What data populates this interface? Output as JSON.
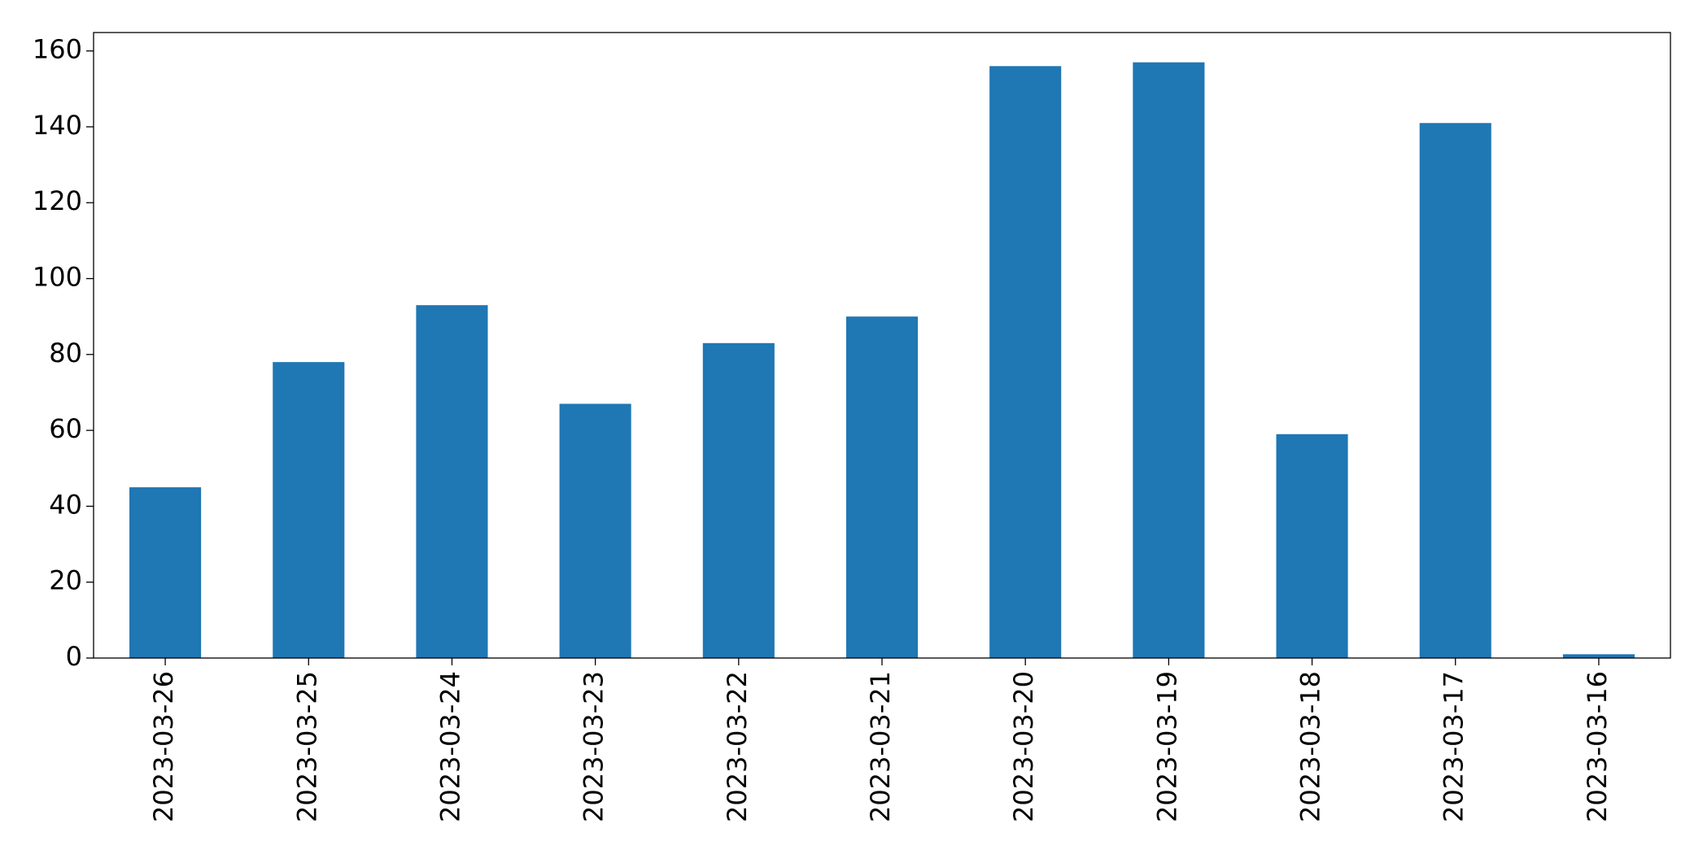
{
  "chart_data": {
    "type": "bar",
    "categories": [
      "2023-03-26",
      "2023-03-25",
      "2023-03-24",
      "2023-03-23",
      "2023-03-22",
      "2023-03-21",
      "2023-03-20",
      "2023-03-19",
      "2023-03-18",
      "2023-03-17",
      "2023-03-16"
    ],
    "values": [
      45,
      78,
      93,
      67,
      83,
      90,
      156,
      157,
      59,
      141,
      1
    ],
    "color": "#1f77b4",
    "ylim": [
      0,
      164.85
    ],
    "yticks": [
      0,
      20,
      40,
      60,
      80,
      100,
      120,
      140,
      160
    ],
    "grid": false
  }
}
